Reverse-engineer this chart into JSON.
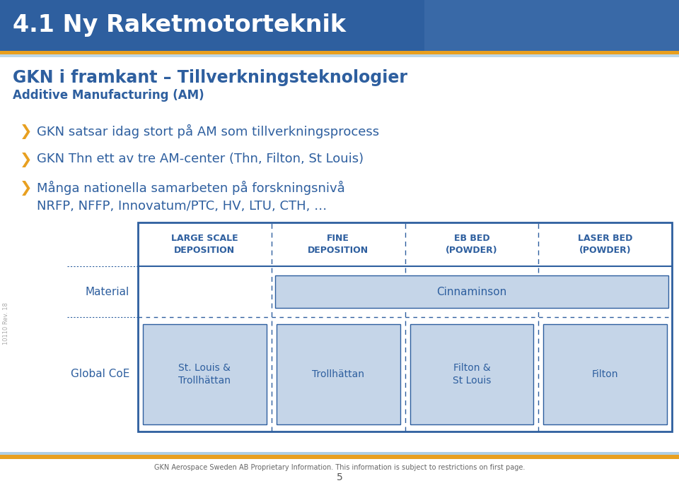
{
  "title": "4.1 Ny Raketmotorteknik",
  "title_bg": "#2e5f9f",
  "title_color": "#ffffff",
  "subtitle1": "GKN i framkant – Tillverkningsteknologier",
  "subtitle2": "Additive Manufacturing (AM)",
  "bullets": [
    "GKN satsar idag stort på AM som tillverkningsprocess",
    "GKN Thn ett av tre AM-center (Thn, Filton, St Louis)",
    "Många nationella samarbeten på forskningsnivå\nNRFP, NFFP, Innovatum/PTC, HV, LTU, CTH, …"
  ],
  "bullet_color": "#e8a020",
  "text_color": "#2e5f9f",
  "table_cell_bg": "#c5d5e8",
  "table_border_color": "#2e5f9f",
  "col_headers": [
    "LARGE SCALE\nDEPOSITION",
    "FINE\nDEPOSITION",
    "EB BED\n(POWDER)",
    "LASER BED\n(POWDER)"
  ],
  "row_labels": [
    "Material",
    "Global CoE"
  ],
  "coe_cells": [
    "St. Louis &\nTrollhättan",
    "Trollhättan",
    "Filton &\nSt Louis",
    "Filton"
  ],
  "footer_text": "GKN Aerospace Sweden AB Proprietary Information. This information is subject to restrictions on first page.",
  "page_number": "5",
  "gold_bar_color": "#e8a020",
  "light_blue_bar": "#7ab0d4",
  "bg_color": "#ffffff",
  "sidebar_text": "10110 Rev. 18"
}
